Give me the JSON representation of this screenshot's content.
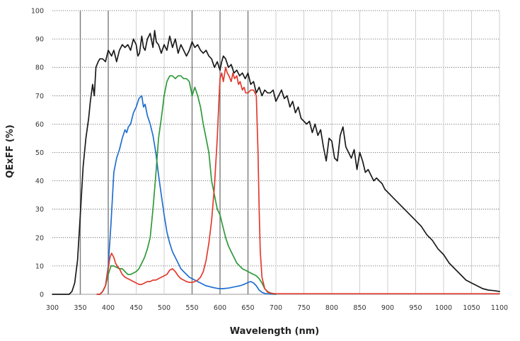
{
  "chart_data": {
    "type": "line",
    "title": "",
    "xlabel": "Wavelength (nm)",
    "ylabel": "QExFF (%)",
    "xlim": [
      300,
      1100
    ],
    "ylim": [
      0,
      100
    ],
    "xticks": [
      "300",
      "350",
      "400",
      "450",
      "500",
      "550",
      "600",
      "650",
      "700",
      "750",
      "800",
      "850",
      "900",
      "950",
      "1000",
      "1050",
      "1100"
    ],
    "yticks": [
      "0",
      "10",
      "20",
      "30",
      "40",
      "50",
      "60",
      "70",
      "80",
      "90",
      "100"
    ],
    "emphasized_gridlines_x": [
      350,
      400,
      550,
      600,
      650
    ],
    "grid": true,
    "legend": "none",
    "series": [
      {
        "color": "#1a1a1a",
        "x": [
          300,
          330,
          335,
          340,
          345,
          350,
          355,
          360,
          365,
          368,
          372,
          375,
          378,
          382,
          385,
          390,
          395,
          400,
          403,
          406,
          410,
          415,
          420,
          425,
          430,
          435,
          440,
          445,
          450,
          453,
          456,
          460,
          463,
          466,
          470,
          475,
          480,
          483,
          486,
          490,
          495,
          500,
          505,
          510,
          515,
          520,
          525,
          530,
          535,
          540,
          545,
          550,
          555,
          560,
          565,
          570,
          575,
          580,
          585,
          590,
          595,
          600,
          603,
          606,
          610,
          615,
          620,
          625,
          630,
          635,
          640,
          645,
          650,
          655,
          660,
          665,
          670,
          675,
          680,
          685,
          690,
          695,
          700,
          705,
          710,
          715,
          720,
          725,
          730,
          735,
          740,
          745,
          750,
          755,
          760,
          765,
          770,
          775,
          780,
          785,
          790,
          795,
          800,
          805,
          810,
          815,
          820,
          825,
          830,
          835,
          840,
          845,
          850,
          855,
          860,
          865,
          870,
          875,
          880,
          885,
          890,
          895,
          900,
          910,
          920,
          930,
          940,
          950,
          960,
          970,
          980,
          990,
          1000,
          1010,
          1020,
          1030,
          1040,
          1050,
          1060,
          1070,
          1080,
          1090,
          1100
        ],
        "values": [
          0,
          0,
          1,
          4,
          12,
          28,
          45,
          55,
          62,
          68,
          74,
          70,
          80,
          82,
          83,
          83,
          82,
          86,
          85,
          84,
          86,
          82,
          86,
          88,
          87,
          88,
          86,
          90,
          88,
          84,
          85,
          91,
          87,
          86,
          90,
          92,
          87,
          93,
          89,
          88,
          85,
          88,
          86,
          91,
          87,
          90,
          85,
          88,
          86,
          84,
          86,
          89,
          87,
          88,
          86,
          85,
          86,
          84,
          83,
          80,
          82,
          79,
          82,
          84,
          83,
          80,
          81,
          78,
          79,
          77,
          78,
          76,
          78,
          74,
          75,
          71,
          73,
          70,
          72,
          71,
          71,
          72,
          68,
          70,
          72,
          69,
          70,
          66,
          68,
          64,
          66,
          62,
          61,
          60,
          61,
          57,
          60,
          56,
          58,
          52,
          47,
          55,
          54,
          48,
          47,
          56,
          59,
          52,
          50,
          48,
          51,
          44,
          50,
          47,
          43,
          44,
          42,
          40,
          41,
          40,
          39,
          37,
          36,
          34,
          32,
          30,
          28,
          26,
          24,
          21,
          19,
          16,
          14,
          11,
          9,
          7,
          5,
          4,
          3,
          2,
          1.5,
          1.3,
          1
        ]
      },
      {
        "color": "#1f6fd0",
        "x": [
          380,
          385,
          390,
          395,
          400,
          405,
          410,
          415,
          420,
          425,
          430,
          433,
          436,
          440,
          445,
          450,
          455,
          460,
          463,
          466,
          470,
          475,
          480,
          485,
          490,
          495,
          500,
          505,
          510,
          515,
          520,
          525,
          530,
          535,
          540,
          545,
          550,
          555,
          560,
          565,
          570,
          575,
          580,
          585,
          590,
          595,
          600,
          605,
          610,
          615,
          620,
          625,
          630,
          635,
          640,
          645,
          650,
          655,
          660,
          665,
          670,
          675,
          680,
          690,
          700
        ],
        "values": [
          0,
          0,
          1,
          3,
          10,
          25,
          43,
          48,
          51,
          55,
          58,
          57,
          59,
          60,
          64,
          66,
          69,
          70,
          66,
          67,
          63,
          60,
          56,
          50,
          42,
          35,
          28,
          22,
          18,
          15,
          13,
          11,
          9,
          8,
          7,
          6,
          5.5,
          5,
          4.5,
          4,
          3.5,
          3,
          2.8,
          2.5,
          2.3,
          2.1,
          2.0,
          2.0,
          2.1,
          2.2,
          2.4,
          2.6,
          2.8,
          3,
          3.3,
          3.7,
          4.2,
          4.5,
          4.0,
          3.0,
          1.5,
          0.7,
          0.3,
          0.1,
          0
        ]
      },
      {
        "color": "#2f9a3a",
        "x": [
          380,
          385,
          390,
          395,
          400,
          405,
          410,
          415,
          420,
          425,
          430,
          435,
          440,
          445,
          450,
          455,
          460,
          465,
          470,
          475,
          480,
          485,
          490,
          495,
          500,
          505,
          510,
          515,
          520,
          525,
          530,
          535,
          540,
          545,
          550,
          555,
          560,
          565,
          570,
          575,
          580,
          585,
          590,
          595,
          600,
          605,
          610,
          615,
          620,
          625,
          630,
          635,
          640,
          645,
          650,
          655,
          660,
          665,
          670,
          675,
          680,
          685,
          690,
          695,
          700
        ],
        "values": [
          0,
          0,
          1,
          3,
          7,
          10,
          10,
          9.5,
          9,
          9,
          8,
          7,
          7,
          7.5,
          8,
          9,
          11,
          13,
          16,
          20,
          30,
          42,
          55,
          62,
          70,
          75,
          77,
          77,
          76,
          77,
          77,
          76,
          76,
          75,
          70,
          73,
          70,
          66,
          60,
          55,
          50,
          40,
          35,
          30,
          28,
          24,
          20,
          17,
          15,
          13,
          11,
          10,
          9,
          8.5,
          8,
          7.5,
          7,
          6.5,
          5.5,
          4,
          2,
          1,
          0.5,
          0.2,
          0
        ]
      },
      {
        "color": "#e23b2e",
        "x": [
          380,
          385,
          390,
          395,
          400,
          403,
          406,
          410,
          413,
          416,
          420,
          425,
          430,
          435,
          440,
          445,
          450,
          455,
          460,
          465,
          470,
          475,
          480,
          485,
          490,
          495,
          500,
          505,
          510,
          515,
          520,
          525,
          530,
          535,
          540,
          545,
          550,
          555,
          560,
          565,
          570,
          575,
          580,
          585,
          590,
          595,
          598,
          600,
          603,
          606,
          610,
          613,
          616,
          620,
          623,
          626,
          630,
          633,
          636,
          640,
          643,
          646,
          650,
          655,
          660,
          665,
          668,
          670,
          672,
          675,
          680,
          685,
          690,
          700,
          750,
          800,
          850,
          900,
          950,
          1000,
          1050,
          1100
        ],
        "values": [
          0,
          0,
          1,
          3,
          9,
          13,
          14.5,
          13,
          11,
          10,
          9,
          7,
          6,
          5.5,
          5,
          4.5,
          4,
          3.5,
          3.5,
          4,
          4.5,
          4.5,
          5,
          5,
          5.5,
          6,
          6.5,
          7,
          8.5,
          9,
          8,
          6.5,
          5.5,
          5,
          4.5,
          4.2,
          4.2,
          4.5,
          5,
          6,
          8,
          12,
          18,
          26,
          38,
          55,
          68,
          76,
          78,
          75,
          80,
          78,
          77,
          75,
          78,
          76,
          77,
          74,
          75,
          72,
          73,
          71,
          71,
          72,
          72,
          70,
          50,
          30,
          15,
          6,
          2,
          0.8,
          0.4,
          0.2,
          0.2,
          0.2,
          0.2,
          0.2,
          0.2,
          0.2,
          0.2,
          0.2
        ]
      }
    ]
  }
}
